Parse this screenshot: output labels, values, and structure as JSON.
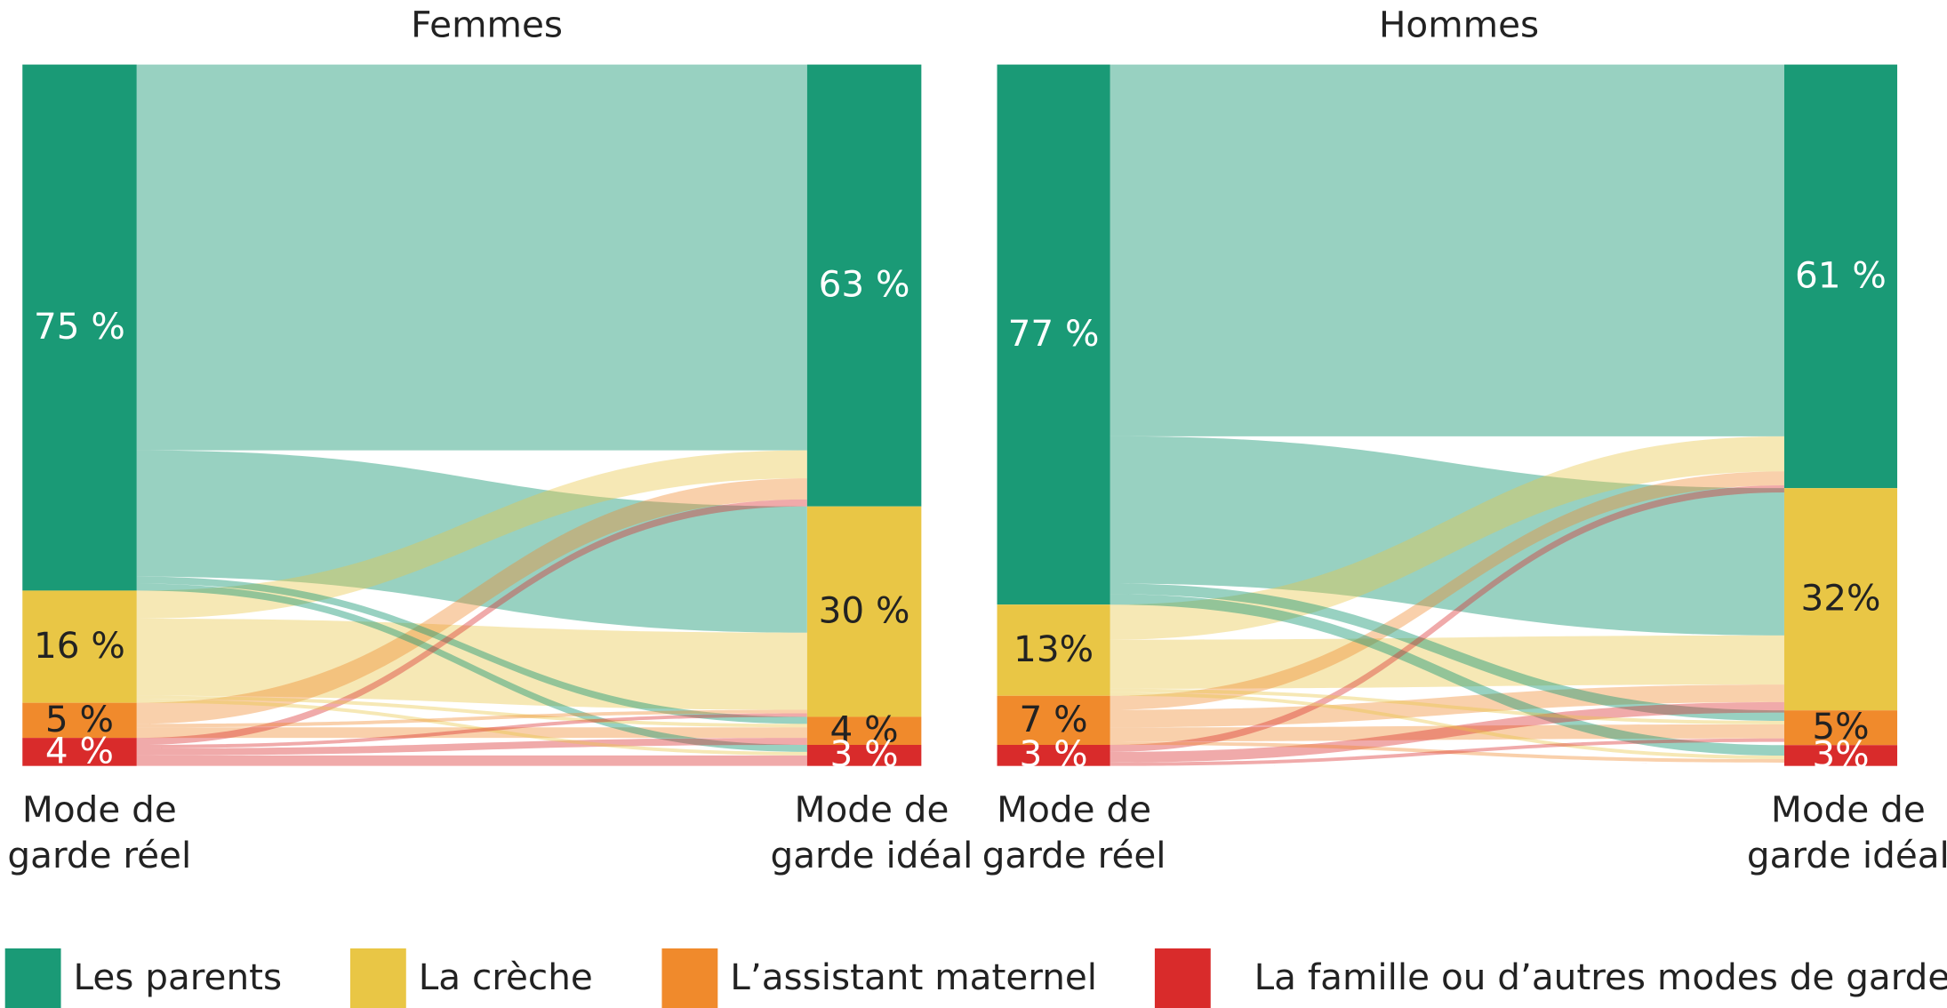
{
  "chart_data": [
    {
      "type": "sankey",
      "title": "Femmes",
      "left_label": [
        "Mode de",
        "garde réel"
      ],
      "right_label": [
        "Mode de",
        "garde idéal"
      ],
      "source_values": [
        75,
        16,
        5,
        4
      ],
      "source_labels": [
        "75 %",
        "16 %",
        "5 %",
        "4 %"
      ],
      "target_values": [
        63,
        30,
        4,
        3
      ],
      "target_labels": [
        "63 %",
        "30 %",
        "4 %",
        "3 %"
      ],
      "flows": [
        [
          55,
          18,
          1,
          1
        ],
        [
          4,
          11,
          0.5,
          0.5
        ],
        [
          3,
          0.5,
          1.5,
          0
        ],
        [
          1,
          0.5,
          1,
          1.5
        ]
      ]
    },
    {
      "type": "sankey",
      "title": "Hommes",
      "left_label": [
        "Mode de",
        "garde réel"
      ],
      "right_label": [
        "Mode de",
        "garde idéal"
      ],
      "source_values": [
        77,
        13,
        7,
        3
      ],
      "source_labels": [
        "77 %",
        "13%",
        "7 %",
        "3 %"
      ],
      "target_values": [
        61,
        32,
        5,
        3
      ],
      "target_labels": [
        "61 %",
        "32%",
        "5%",
        "3%"
      ],
      "flows": [
        [
          53,
          21,
          1.5,
          1.5
        ],
        [
          5,
          7,
          0.5,
          0.5
        ],
        [
          2,
          2.5,
          2,
          0.5
        ],
        [
          1,
          1.5,
          0.5,
          0
        ]
      ]
    }
  ],
  "legend": {
    "categories": [
      "Les parents",
      "La crèche",
      "L’assistant maternel",
      "La famille ou d’autres modes de garde"
    ],
    "colors": [
      "#1a9a76",
      "#e9c645",
      "#f08a2c",
      "#d92b2b"
    ]
  }
}
